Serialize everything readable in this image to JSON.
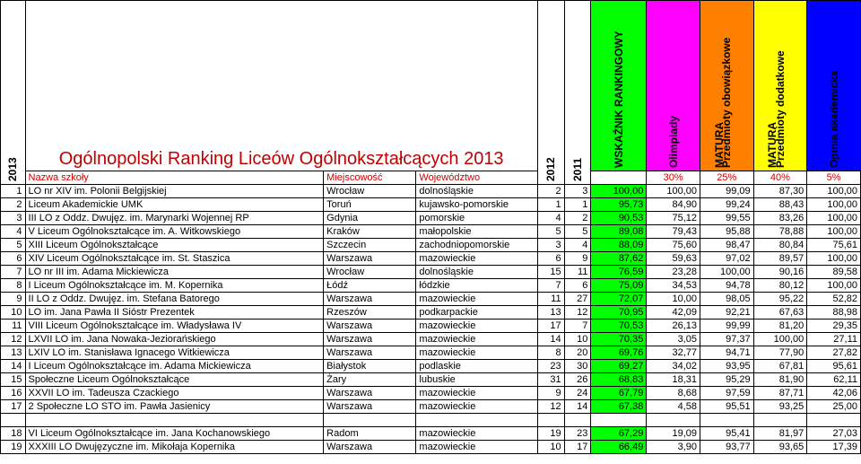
{
  "header": {
    "year_label": "2013",
    "title": "Ogólnopolski Ranking Liceów Ogólnokształcących 2013",
    "col_school": "Nazwa szkoły",
    "col_city": "Miejscowość",
    "col_region": "Województwo",
    "col_2012": "2012",
    "col_2011": "2011",
    "col_indicator": "WSKAŹNIK RANKINGOWY",
    "col_olimp": "Olimpiady",
    "col_matura_a": "MATURA",
    "col_matura_a_sub": "Przedmioty obowiązkowe",
    "col_matura_b": "MATURA",
    "col_matura_b_sub": "Przedmioty dodatkowe",
    "col_opinion": "Opinia akademicka",
    "pct_olimp": "30%",
    "pct_mo": "25%",
    "pct_md": "40%",
    "pct_op": "5%"
  },
  "colors": {
    "indicator_bg": "#00ff00",
    "olimp_bg": "#ff00ff",
    "matura_ob_bg": "#ff8000",
    "matura_dod_bg": "#ffff00",
    "opinion_bg": "#0000ff",
    "title_color": "#c00000"
  },
  "rows": [
    {
      "r": 1,
      "school": "LO nr XIV im. Polonii Belgijskiej",
      "city": "Wrocław",
      "region": "dolnośląskie",
      "p12": "2",
      "p11": "3",
      "ind": "100,00",
      "ol": "100,00",
      "mo": "99,09",
      "md": "87,30",
      "op": "100,00"
    },
    {
      "r": 2,
      "school": "Liceum Akademickie UMK",
      "city": "Toruń",
      "region": "kujawsko-pomorskie",
      "p12": "1",
      "p11": "1",
      "ind": "95,73",
      "ol": "84,90",
      "mo": "99,24",
      "md": "88,43",
      "op": "100,00"
    },
    {
      "r": 3,
      "school": "III LO z Oddz. Dwujęz. im. Marynarki Wojennej RP",
      "city": "Gdynia",
      "region": "pomorskie",
      "p12": "4",
      "p11": "2",
      "ind": "90,53",
      "ol": "75,12",
      "mo": "99,55",
      "md": "83,26",
      "op": "100,00"
    },
    {
      "r": 4,
      "school": "V Liceum Ogólnokształcące im. A. Witkowskiego",
      "city": "Kraków",
      "region": "małopolskie",
      "p12": "5",
      "p11": "5",
      "ind": "89,08",
      "ol": "79,43",
      "mo": "95,88",
      "md": "78,88",
      "op": "100,00"
    },
    {
      "r": 5,
      "school": "XIII Liceum Ogólnokształcące",
      "city": "Szczecin",
      "region": "zachodniopomorskie",
      "p12": "3",
      "p11": "4",
      "ind": "88,09",
      "ol": "75,60",
      "mo": "98,47",
      "md": "80,84",
      "op": "75,61"
    },
    {
      "r": 6,
      "school": "XIV Liceum Ogólnokształcące im. St. Staszica",
      "city": "Warszawa",
      "region": "mazowieckie",
      "p12": "6",
      "p11": "9",
      "ind": "87,62",
      "ol": "59,63",
      "mo": "97,02",
      "md": "89,57",
      "op": "100,00"
    },
    {
      "r": 7,
      "school": "LO nr III im. Adama Mickiewicza",
      "city": "Wrocław",
      "region": "dolnośląskie",
      "p12": "15",
      "p11": "11",
      "ind": "76,59",
      "ol": "23,28",
      "mo": "100,00",
      "md": "90,16",
      "op": "89,58"
    },
    {
      "r": 8,
      "school": "I Liceum Ogólnokształcące im. M. Kopernika",
      "city": "Łódź",
      "region": "łódzkie",
      "p12": "7",
      "p11": "6",
      "ind": "75,09",
      "ol": "34,53",
      "mo": "94,78",
      "md": "80,12",
      "op": "100,00"
    },
    {
      "r": 9,
      "school": "II LO z Oddz. Dwujęz. im. Stefana Batorego",
      "city": "Warszawa",
      "region": "mazowieckie",
      "p12": "11",
      "p11": "27",
      "ind": "72,07",
      "ol": "10,00",
      "mo": "98,05",
      "md": "95,22",
      "op": "52,82"
    },
    {
      "r": 10,
      "school": "LO im. Jana Pawła II Sióstr Prezentek",
      "city": "Rzeszów",
      "region": "podkarpackie",
      "p12": "13",
      "p11": "12",
      "ind": "70,95",
      "ol": "42,09",
      "mo": "92,21",
      "md": "67,63",
      "op": "88,98"
    },
    {
      "r": 11,
      "school": "VIII Liceum Ogólnokształcące im. Władysława IV",
      "city": "Warszawa",
      "region": "mazowieckie",
      "p12": "17",
      "p11": "7",
      "ind": "70,53",
      "ol": "26,13",
      "mo": "99,99",
      "md": "81,20",
      "op": "29,35"
    },
    {
      "r": 12,
      "school": "LXVII LO im. Jana Nowaka-Jeziorańskiego",
      "city": "Warszawa",
      "region": "mazowieckie",
      "p12": "14",
      "p11": "10",
      "ind": "70,35",
      "ol": "3,05",
      "mo": "97,37",
      "md": "100,00",
      "op": "27,11"
    },
    {
      "r": 13,
      "school": "LXIV LO im. Stanisława Ignacego Witkiewicza",
      "city": "Warszawa",
      "region": "mazowieckie",
      "p12": "8",
      "p11": "20",
      "ind": "69,76",
      "ol": "32,77",
      "mo": "94,71",
      "md": "77,90",
      "op": "27,82"
    },
    {
      "r": 14,
      "school": "I Liceum Ogólnokształcące im. Adama Mickiewicza",
      "city": "Białystok",
      "region": "podlaskie",
      "p12": "23",
      "p11": "30",
      "ind": "69,27",
      "ol": "34,02",
      "mo": "93,95",
      "md": "67,81",
      "op": "95,61"
    },
    {
      "r": 15,
      "school": "Społeczne Liceum Ogólnokształcące",
      "city": "Żary",
      "region": "lubuskie",
      "p12": "31",
      "p11": "26",
      "ind": "68,83",
      "ol": "18,31",
      "mo": "95,29",
      "md": "81,90",
      "op": "62,11"
    },
    {
      "r": 16,
      "school": "XXVII LO im. Tadeusza Czackiego",
      "city": "Warszawa",
      "region": "mazowieckie",
      "p12": "9",
      "p11": "24",
      "ind": "67,79",
      "ol": "8,68",
      "mo": "97,59",
      "md": "87,71",
      "op": "42,06"
    },
    {
      "r": 17,
      "school": "2 Społeczne LO STO im. Pawła Jasienicy",
      "city": "Warszawa",
      "region": "mazowieckie",
      "p12": "12",
      "p11": "14",
      "ind": "67,38",
      "ol": "4,58",
      "mo": "95,51",
      "md": "93,25",
      "op": "25,00"
    },
    {
      "r": 18,
      "school": "VI Liceum Ogólnokształcące im. Jana Kochanowskiego",
      "city": "Radom",
      "region": "mazowieckie",
      "p12": "19",
      "p11": "23",
      "ind": "67,29",
      "ol": "19,09",
      "mo": "95,41",
      "md": "81,97",
      "op": "27,03"
    },
    {
      "r": 19,
      "school": "XXXIII LO Dwujęzyczne im. Mikołaja Kopernika",
      "city": "Warszawa",
      "region": "mazowieckie",
      "p12": "10",
      "p11": "17",
      "ind": "66,49",
      "ol": "3,90",
      "mo": "93,77",
      "md": "93,65",
      "op": "17,39"
    }
  ]
}
